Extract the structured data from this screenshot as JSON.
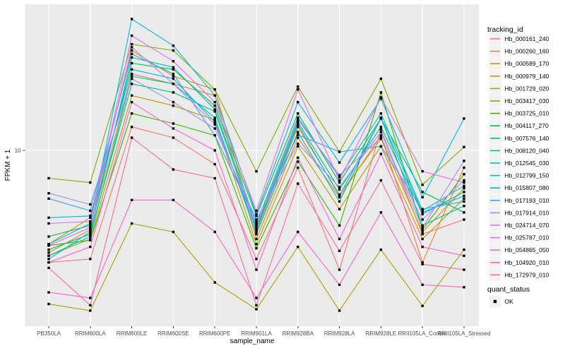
{
  "figure": {
    "background": "#FFFFFF",
    "panel_background": "#EBEBEB",
    "grid_color": "#FFFFFF",
    "tick_color": "#333333",
    "point_color": "#000000"
  },
  "chart_data": {
    "type": "line",
    "title": "",
    "xlabel": "sample_name",
    "ylabel": "FPKM + 1",
    "y_scale": "log10",
    "y_tick_labels": [
      "10"
    ],
    "y_tick_values": [
      10
    ],
    "ylim": [
      0.83,
      80
    ],
    "grid": "major-only",
    "legend_position": "right",
    "categories": [
      "PB350LA",
      "RRIM600LA",
      "RRIM600LE",
      "RRIM600SE",
      "RRIM600PE",
      "RRIM901LA",
      "RRIM928BA",
      "RRIM928LA",
      "RRIM928LE",
      "RRII105LA_Control",
      "RRII105LA_Stressed"
    ],
    "series": [
      {
        "name": "Hb_000161_240",
        "color": "#F8766D",
        "values": [
          2.0,
          2.1,
          14,
          12,
          8.2,
          2.1,
          7.8,
          1.8,
          13.5,
          3.0,
          3.7
        ]
      },
      {
        "name": "Hb_000260_160",
        "color": "#EA8331",
        "values": [
          2.3,
          3.2,
          30,
          26,
          22,
          2.8,
          12,
          5.1,
          12.4,
          2.0,
          7.8
        ]
      },
      {
        "name": "Hb_000589_170",
        "color": "#D89000",
        "values": [
          2.6,
          3.8,
          42,
          29,
          24,
          3.1,
          14,
          5.3,
          11.8,
          3.1,
          5.8
        ]
      },
      {
        "name": "Hb_000979_140",
        "color": "#C09B00",
        "values": [
          2.2,
          2.8,
          22,
          19,
          15.5,
          2.6,
          10.6,
          4.3,
          10.6,
          2.8,
          5.0
        ]
      },
      {
        "name": "Hb_001729_020",
        "color": "#A3A500",
        "values": [
          1.1,
          1.0,
          3.5,
          3.1,
          1.5,
          1.02,
          2.5,
          1.0,
          2.4,
          1.07,
          2.4
        ]
      },
      {
        "name": "Hb_003417_030",
        "color": "#7CAE00",
        "values": [
          6.7,
          6.3,
          46,
          42,
          24,
          7.4,
          25,
          9.8,
          28,
          6.1,
          10.5
        ]
      },
      {
        "name": "Hb_003725_010",
        "color": "#39B600",
        "values": [
          2.55,
          2.75,
          17,
          14.7,
          12.4,
          2.45,
          8.5,
          3.4,
          23,
          3.2,
          7.1
        ]
      },
      {
        "name": "Hb_004117_270",
        "color": "#00BB4E",
        "values": [
          2.9,
          3.4,
          35,
          32,
          19,
          3.9,
          17,
          6.3,
          15.8,
          5.5,
          4.1
        ]
      },
      {
        "name": "Hb_007576_140",
        "color": "#00BF7D",
        "values": [
          2.4,
          3.0,
          26,
          23,
          17.5,
          3.3,
          15,
          5.7,
          14,
          4.0,
          5.5
        ]
      },
      {
        "name": "Hb_008120_040",
        "color": "#00C1A3",
        "values": [
          2.2,
          2.9,
          29,
          26,
          16,
          3.0,
          13,
          4.8,
          16,
          3.4,
          4.5
        ]
      },
      {
        "name": "Hb_012545_030",
        "color": "#00BFC4",
        "values": [
          2.1,
          3.1,
          38,
          33,
          18,
          3.5,
          16,
          6.8,
          17,
          4.2,
          6.0
        ]
      },
      {
        "name": "Hb_012799_150",
        "color": "#00BAE0",
        "values": [
          2.6,
          3.5,
          66,
          45,
          22,
          4.0,
          20,
          8.4,
          21,
          5.1,
          15.8
        ]
      },
      {
        "name": "Hb_015807_080",
        "color": "#00B0F6",
        "values": [
          3.8,
          3.9,
          32,
          28,
          15,
          3.2,
          14.5,
          5.2,
          15.8,
          4.1,
          5.2
        ]
      },
      {
        "name": "Hb_017193_010",
        "color": "#35A2FF",
        "values": [
          5.0,
          4.2,
          40,
          30,
          12.4,
          3.6,
          12.5,
          9.8,
          10.6,
          4.3,
          4.8
        ]
      },
      {
        "name": "Hb_017914_010",
        "color": "#9590FF",
        "values": [
          5.4,
          4.6,
          28,
          20,
          13.7,
          3.7,
          11,
          5.9,
          13,
          3.3,
          8.6
        ]
      },
      {
        "name": "Hb_024714_070",
        "color": "#C77CFF",
        "values": [
          3.5,
          3.6,
          44,
          26,
          14.5,
          3.4,
          15.5,
          7.0,
          12,
          3.7,
          6.5
        ]
      },
      {
        "name": "Hb_025787_010",
        "color": "#E76BF3",
        "values": [
          2.55,
          3.3,
          52,
          36,
          20,
          4.2,
          24,
          6.5,
          21.4,
          7.4,
          6.3
        ]
      },
      {
        "name": "Hb_054865_050",
        "color": "#FA62DB",
        "values": [
          2.0,
          2.5,
          20,
          13.7,
          10,
          1.8,
          9,
          2.8,
          9.5,
          2.5,
          2.2
        ]
      },
      {
        "name": "Hb_104920_010",
        "color": "#FF61C9",
        "values": [
          1.3,
          1.2,
          4.9,
          4.9,
          3.1,
          1.2,
          3.1,
          1.45,
          4.1,
          1.45,
          1.4
        ]
      },
      {
        "name": "Hb_172979_010",
        "color": "#FF6A98",
        "values": [
          1.85,
          1.08,
          12,
          7.6,
          6.7,
          1.08,
          6.2,
          2.36,
          6.5,
          1.95,
          1.8
        ]
      }
    ],
    "legend": {
      "color_title": "tracking_id",
      "shape_title": "quant_status",
      "shape_items": [
        {
          "label": "OK",
          "shape": "black-square"
        }
      ]
    }
  }
}
